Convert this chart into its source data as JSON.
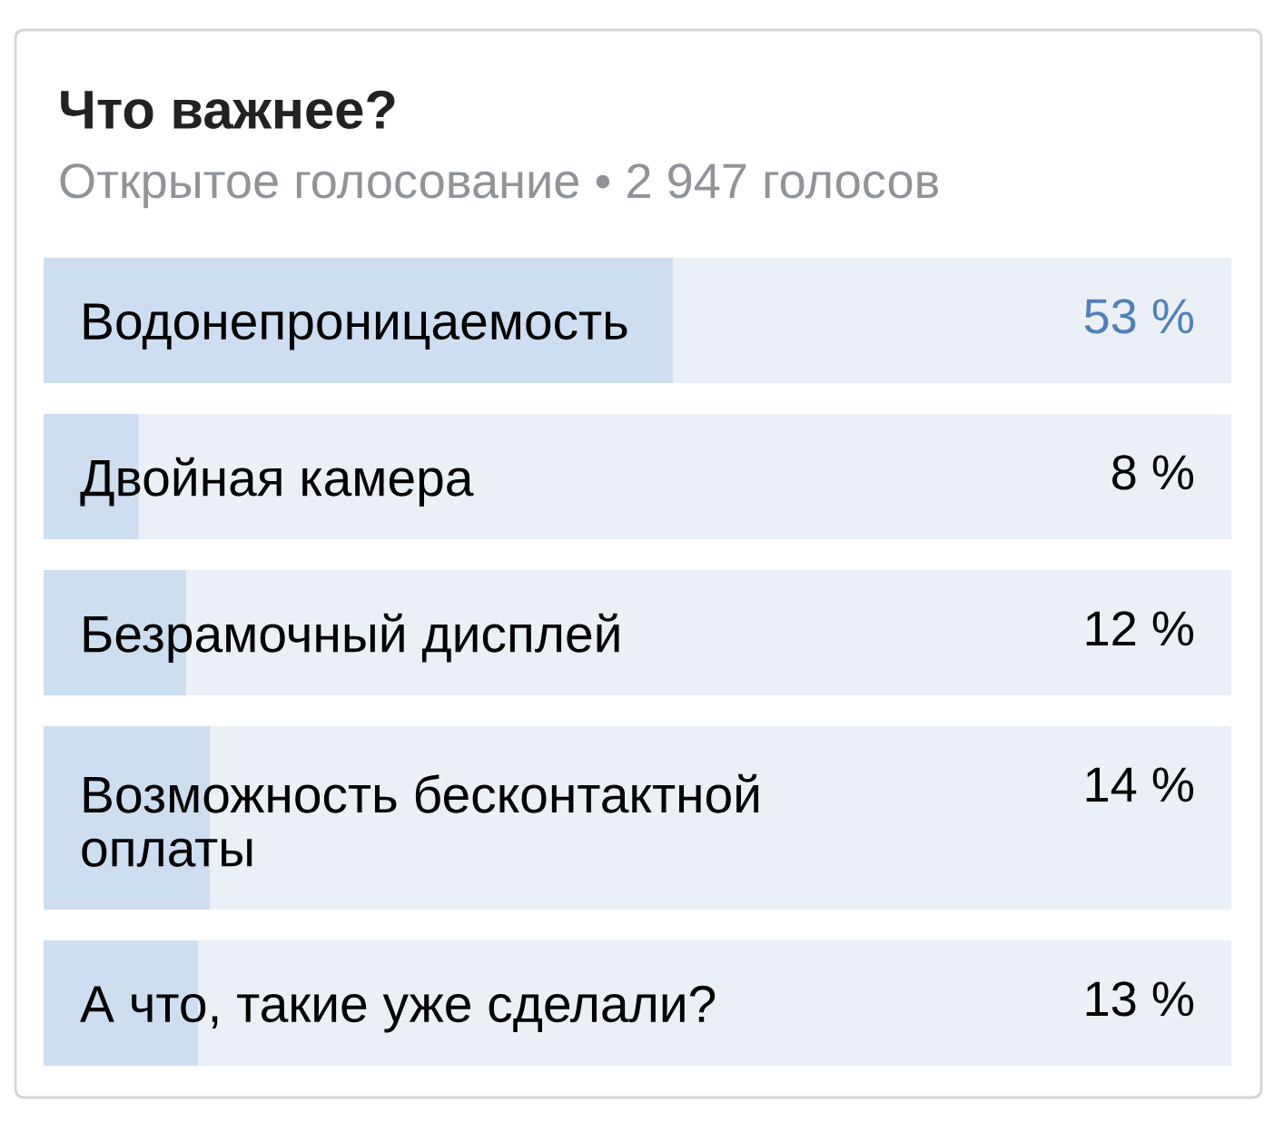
{
  "chart_data": {
    "type": "bar",
    "orientation": "horizontal",
    "title": "Что важнее?",
    "subtitle": "Открытое голосование • 2 947 голосов",
    "categories": [
      "Водонепроницаемость",
      "Двойная камера",
      "Безрамочный дисплей",
      "Возможность бесконтактной\nоплаты",
      "А что, такие уже сделали?"
    ],
    "values": [
      53,
      8,
      12,
      14,
      13
    ],
    "value_labels": [
      "53 %",
      "8 %",
      "12 %",
      "14 %",
      "13 %"
    ],
    "color": "#cddef1",
    "xlim": [
      0,
      100
    ],
    "tick_labels": "y"
  }
}
